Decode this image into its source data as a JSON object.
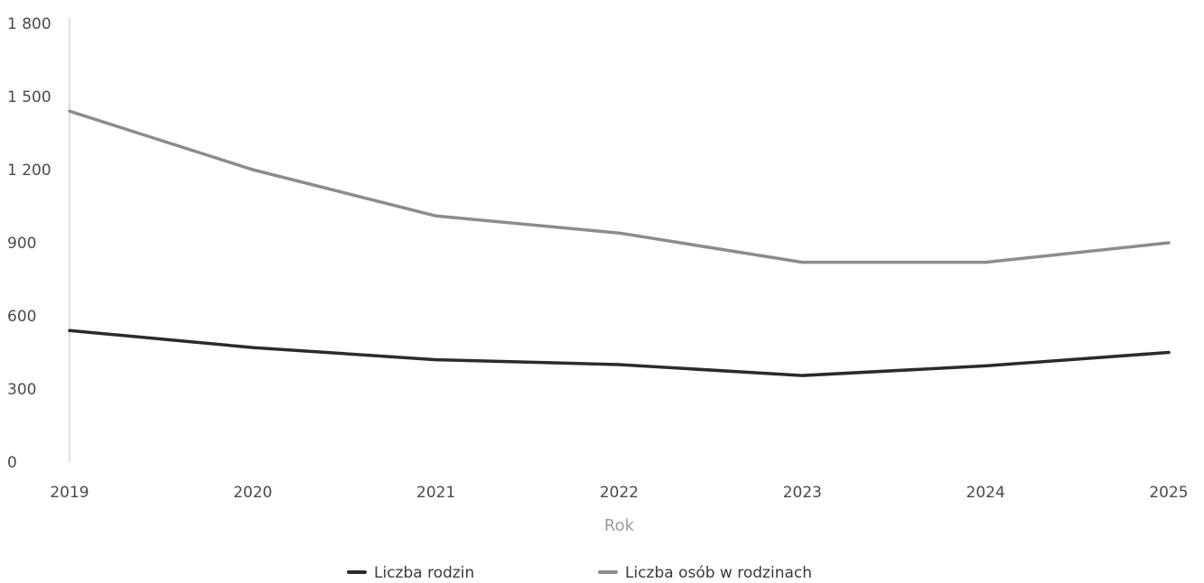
{
  "chart_data": {
    "type": "line",
    "title": "",
    "xlabel": "Rok",
    "ylabel": "",
    "x": [
      "2019",
      "2020",
      "2021",
      "2022",
      "2023",
      "2024",
      "2025"
    ],
    "yticks": [
      "0",
      "300",
      "600",
      "900",
      "1 200",
      "1 500",
      "1 800"
    ],
    "ylim": [
      0,
      1800
    ],
    "grid": false,
    "legend_position": "bottom-center",
    "series": [
      {
        "name": "Liczba rodzin",
        "color": "#2b2b2b",
        "values": [
          540,
          470,
          420,
          400,
          355,
          395,
          450
        ]
      },
      {
        "name": "Liczba osób w rodzinach",
        "color": "#8c8c8c",
        "values": [
          1440,
          1200,
          1010,
          940,
          820,
          820,
          900
        ]
      }
    ]
  }
}
